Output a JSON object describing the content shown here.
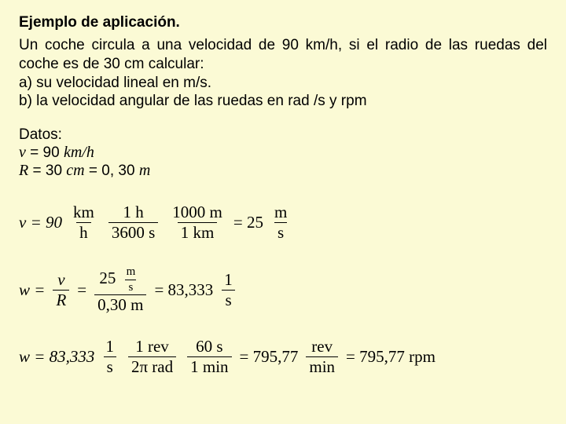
{
  "title": "Ejemplo de aplicación.",
  "para1": "Un coche circula a una velocidad de 90 km/h, si el radio de las ruedas del coche es de 30 cm calcular:",
  "lineA": "a) su velocidad lineal en m/s.",
  "lineB": "b) la velocidad angular de las ruedas en rad /s y rpm",
  "datos_label": "Datos:",
  "dato_v_pre": "v",
  "dato_v_post": " = 90 ",
  "dato_v_unit": "km/h",
  "dato_r_pre": "R",
  "dato_r_post": " = 30 ",
  "dato_r_unit": "cm",
  "dato_r_eq": " = 0, 30 ",
  "dato_r_unit2": "m",
  "eq1": {
    "lhs": "v = 90",
    "f1n": "km",
    "f1d": "h",
    "f2n": "1 h",
    "f2d": "3600 s",
    "f3n": "1000 m",
    "f3d": "1 km",
    "res": "= 25",
    "f4n": "m",
    "f4d": "s"
  },
  "eq2": {
    "lhs": "w =",
    "f1n": "v",
    "f1d": "R",
    "eq": "=",
    "nnn": "25",
    "nnu_n": "m",
    "nnu_d": "s",
    "dd": "0,30 m",
    "res": "= 83,333",
    "f3n": "1",
    "f3d": "s"
  },
  "eq3": {
    "lhs": "w = 83,333",
    "f1n": "1",
    "f1d": "s",
    "f2n": "1 rev",
    "f2d": "2π rad",
    "f3n": "60 s",
    "f3d": "1 min",
    "res1": "= 795,77",
    "f4n": "rev",
    "f4d": "min",
    "res2": "= 795,77 rpm"
  }
}
